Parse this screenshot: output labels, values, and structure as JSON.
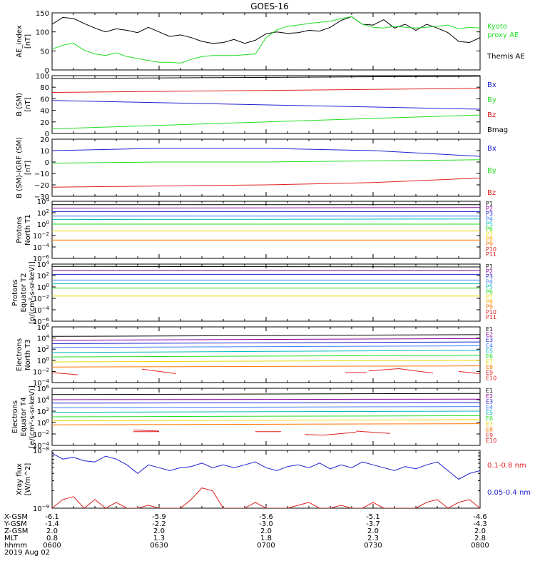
{
  "title": "GOES-16",
  "colors": {
    "black": "#000000",
    "green": "#22dd22",
    "red": "#e02020",
    "blue": "#2020d0",
    "yellow": "#e8d800",
    "orange": "#ff9900",
    "cyan": "#00bbbb"
  },
  "chart_data": [
    {
      "type": "line",
      "id": "ae",
      "ylabel": [
        "AE_index",
        "[nT]"
      ],
      "ylim": [
        0,
        150
      ],
      "yticks": [
        "0",
        "50",
        "100",
        "150"
      ],
      "legend": [
        {
          "text": "Kyoto",
          "color": "#22dd22"
        },
        {
          "text": "proxy AE",
          "color": "#22dd22"
        },
        {
          "text": "Themis AE",
          "color": "#000000"
        }
      ],
      "x": [
        6.0,
        6.05,
        6.1,
        6.15,
        6.2,
        6.25,
        6.3,
        6.35,
        6.4,
        6.45,
        6.5,
        6.55,
        6.6,
        6.65,
        6.7,
        6.75,
        6.8,
        6.85,
        6.9,
        6.95,
        7.0,
        7.05,
        7.1,
        7.15,
        7.2,
        7.25,
        7.3,
        7.35,
        7.4,
        7.45,
        7.5,
        7.55,
        7.6,
        7.65,
        7.7,
        7.75,
        7.8,
        7.85,
        7.9,
        7.95,
        8.0
      ],
      "series": [
        {
          "name": "Themis AE",
          "color": "#000000",
          "values": [
            120,
            138,
            135,
            122,
            110,
            100,
            108,
            104,
            98,
            112,
            100,
            88,
            92,
            85,
            75,
            70,
            72,
            80,
            70,
            78,
            95,
            100,
            96,
            98,
            104,
            102,
            112,
            130,
            140,
            120,
            118,
            132,
            110,
            120,
            104,
            120,
            110,
            98,
            75,
            72,
            85
          ]
        },
        {
          "name": "Kyoto proxy AE",
          "color": "#22dd22",
          "values": [
            55,
            65,
            70,
            52,
            42,
            38,
            45,
            35,
            30,
            25,
            20,
            20,
            18,
            28,
            35,
            38,
            38,
            38,
            40,
            42,
            85,
            105,
            115,
            118,
            122,
            125,
            128,
            135,
            140,
            120,
            112,
            110,
            115,
            112,
            110,
            112,
            115,
            118,
            108,
            112,
            110
          ]
        }
      ]
    },
    {
      "type": "line",
      "id": "bsm",
      "ylabel": [
        "B (SM)",
        "[nT]"
      ],
      "ylim": [
        0,
        100
      ],
      "yticks": [
        "0",
        "20",
        "40",
        "60",
        "80",
        "100"
      ],
      "legend": [
        {
          "text": "Bx",
          "color": "#2020d0"
        },
        {
          "text": "By",
          "color": "#22dd22"
        },
        {
          "text": "Bz",
          "color": "#e02020"
        },
        {
          "text": "Bmag",
          "color": "#000000"
        }
      ],
      "x": [
        6.0,
        8.0
      ],
      "series": [
        {
          "name": "Bmag",
          "color": "#000000",
          "values": [
            95,
            99
          ]
        },
        {
          "name": "Bz",
          "color": "#e02020",
          "values": [
            71,
            78
          ]
        },
        {
          "name": "Bx",
          "color": "#2020d0",
          "values": [
            57,
            42
          ]
        },
        {
          "name": "By",
          "color": "#22dd22",
          "values": [
            8,
            32
          ]
        }
      ]
    },
    {
      "type": "line",
      "id": "bdiff",
      "ylabel": [
        "B (SM)-IGRF (SM)",
        "[nT]"
      ],
      "ylim": [
        -30,
        20
      ],
      "yticks": [
        "−30",
        "−20",
        "−10",
        "0",
        "10",
        "20"
      ],
      "legend": [
        {
          "text": "Bx",
          "color": "#2020d0"
        },
        {
          "text": "By",
          "color": "#22dd22"
        },
        {
          "text": "Bz",
          "color": "#e02020"
        }
      ],
      "x": [
        6.0,
        6.5,
        7.0,
        7.5,
        8.0
      ],
      "series": [
        {
          "name": "Bx",
          "color": "#2020d0",
          "values": [
            10,
            12,
            12,
            10,
            5
          ]
        },
        {
          "name": "By",
          "color": "#22dd22",
          "values": [
            -1,
            0,
            0,
            1,
            2
          ]
        },
        {
          "name": "Bz",
          "color": "#e02020",
          "values": [
            -22,
            -21,
            -20,
            -18,
            -14
          ]
        }
      ]
    },
    {
      "type": "line",
      "id": "protons-north",
      "log": true,
      "ylabel": [
        "Protons",
        "North T1"
      ],
      "ylim": [
        -6,
        4
      ],
      "yticks": [
        "10^-6",
        "10^-4",
        "10^-2",
        "10^0",
        "10^2",
        "10^4"
      ],
      "x": [
        6.0,
        8.0
      ],
      "series": [
        {
          "name": "P1",
          "color": "#000000",
          "values": [
            3.4,
            3.4
          ]
        },
        {
          "name": "P2",
          "color": "#8a00a0",
          "values": [
            2.8,
            2.9
          ]
        },
        {
          "name": "P3",
          "color": "#2020d0",
          "values": [
            2.2,
            2.2
          ]
        },
        {
          "name": "P4",
          "color": "#3a7fff",
          "values": [
            1.4,
            1.4
          ]
        },
        {
          "name": "P5",
          "color": "#00bbbb",
          "values": [
            0.8,
            0.9
          ]
        },
        {
          "name": "P6",
          "color": "#22dd22",
          "values": [
            0.0,
            0.0
          ]
        },
        {
          "name": "P7",
          "color": "#e8d800",
          "values": [
            -1.2,
            -1.2
          ]
        },
        {
          "name": "P8",
          "color": "#ffaa00",
          "values": [
            -2.8,
            -2.8
          ]
        },
        {
          "name": "P9",
          "color": "#ff7700",
          "values": [
            -2.8,
            -2.8
          ]
        },
        {
          "name": "P10",
          "color": "#e02020",
          "values": [
            -7,
            -7
          ]
        },
        {
          "name": "P11",
          "color": "#e02020",
          "values": [
            -7,
            -7
          ]
        }
      ]
    },
    {
      "type": "line",
      "id": "protons-equator",
      "log": true,
      "ylabel": [
        "Protons",
        "Equator T2",
        "[p/(cm²-s-sr-keV)]"
      ],
      "ylim": [
        -6,
        4
      ],
      "yticks": [
        "10^-6",
        "10^-4",
        "10^-2",
        "10^0",
        "10^2",
        "10^4"
      ],
      "x": [
        6.0,
        8.0
      ],
      "series": [
        {
          "name": "P1",
          "color": "#000000",
          "values": [
            3.6,
            3.5
          ]
        },
        {
          "name": "P2",
          "color": "#8a00a0",
          "values": [
            2.9,
            2.9
          ]
        },
        {
          "name": "P3",
          "color": "#2020d0",
          "values": [
            2.2,
            2.2
          ]
        },
        {
          "name": "P4",
          "color": "#3a7fff",
          "values": [
            1.2,
            1.2
          ]
        },
        {
          "name": "P5",
          "color": "#00bbbb",
          "values": [
            0.6,
            0.6
          ]
        },
        {
          "name": "P6",
          "color": "#22dd22",
          "values": [
            -0.2,
            -0.2
          ]
        },
        {
          "name": "P7",
          "color": "#e8d800",
          "values": [
            -1.6,
            -1.6
          ]
        },
        {
          "name": "P8",
          "color": "#ffaa00",
          "values": [
            -7,
            -7
          ]
        },
        {
          "name": "P9",
          "color": "#ff7700",
          "values": [
            -7,
            -7
          ]
        },
        {
          "name": "P10",
          "color": "#e02020",
          "values": [
            -7,
            -7
          ]
        },
        {
          "name": "P11",
          "color": "#e02020",
          "values": [
            -7,
            -7
          ]
        }
      ]
    },
    {
      "type": "line",
      "id": "electrons-north",
      "log": true,
      "ylabel": [
        "Electrons",
        "North T3"
      ],
      "ylim": [
        -4,
        6
      ],
      "yticks": [
        "10^-4",
        "10^-2",
        "10^0",
        "10^2",
        "10^4",
        "10^6"
      ],
      "x": [
        6.0,
        8.0
      ],
      "series": [
        {
          "name": "E1",
          "color": "#000000",
          "values": [
            4.3,
            4.6
          ]
        },
        {
          "name": "E2",
          "color": "#8a00a0",
          "values": [
            3.6,
            3.9
          ]
        },
        {
          "name": "E3",
          "color": "#2020d0",
          "values": [
            3.0,
            3.3
          ]
        },
        {
          "name": "E4",
          "color": "#3a7fff",
          "values": [
            2.3,
            2.6
          ]
        },
        {
          "name": "E5",
          "color": "#00bbbb",
          "values": [
            1.4,
            1.8
          ]
        },
        {
          "name": "E6",
          "color": "#22dd22",
          "values": [
            0.6,
            0.9
          ]
        },
        {
          "name": "E7",
          "color": "#e8d800",
          "values": [
            -0.3,
            0.0
          ]
        },
        {
          "name": "E8",
          "color": "#ff7700",
          "values": [
            -1.2,
            -1.0
          ]
        },
        {
          "name": "E9",
          "color": "#e02020",
          "values": [
            -6,
            -6
          ]
        },
        {
          "name": "E10",
          "color": "#e02020",
          "values": [
            -6,
            -6
          ]
        }
      ],
      "segments": [
        {
          "x": [
            6.0,
            6.12
          ],
          "y": [
            -2.2,
            -2.6
          ]
        },
        {
          "x": [
            6.42,
            6.58
          ],
          "y": [
            -1.6,
            -2.4
          ]
        },
        {
          "x": [
            7.37,
            7.47
          ],
          "y": [
            -2.2,
            -2.2
          ]
        },
        {
          "x": [
            7.48,
            7.62
          ],
          "y": [
            -1.9,
            -1.5
          ]
        },
        {
          "x": [
            7.62,
            7.78
          ],
          "y": [
            -1.5,
            -2.3
          ]
        },
        {
          "x": [
            7.9,
            8.0
          ],
          "y": [
            -2.0,
            -2.4
          ]
        }
      ]
    },
    {
      "type": "line",
      "id": "electrons-equator",
      "log": true,
      "ylabel": [
        "Electrons",
        "Equator T4",
        "[e/(cm²-s-sr-keV)]"
      ],
      "ylim": [
        -4,
        6
      ],
      "yticks": [
        "10^-4",
        "10^-2",
        "10^0",
        "10^2",
        "10^4",
        "10^6"
      ],
      "x": [
        6.0,
        8.0
      ],
      "series": [
        {
          "name": "E1",
          "color": "#000000",
          "values": [
            4.9,
            5.1
          ]
        },
        {
          "name": "E2",
          "color": "#8a00a0",
          "values": [
            4.0,
            4.1
          ]
        },
        {
          "name": "E3",
          "color": "#2020d0",
          "values": [
            3.4,
            3.5
          ]
        },
        {
          "name": "E4",
          "color": "#3a7fff",
          "values": [
            2.6,
            2.8
          ]
        },
        {
          "name": "E5",
          "color": "#00bbbb",
          "values": [
            1.8,
            2.0
          ]
        },
        {
          "name": "E6",
          "color": "#22dd22",
          "values": [
            1.0,
            1.2
          ]
        },
        {
          "name": "E7",
          "color": "#e8d800",
          "values": [
            0.3,
            0.5
          ]
        },
        {
          "name": "E8",
          "color": "#ff7700",
          "values": [
            -0.4,
            -0.2
          ]
        },
        {
          "name": "E9",
          "color": "#e02020",
          "values": [
            -6,
            -6
          ]
        },
        {
          "name": "E10",
          "color": "#e02020",
          "values": [
            -6,
            -6
          ]
        }
      ],
      "segments": [
        {
          "x": [
            6.38,
            6.5
          ],
          "y": [
            -1.3,
            -1.5
          ]
        },
        {
          "x": [
            6.38,
            6.5
          ],
          "y": [
            -1.6,
            -1.6
          ]
        },
        {
          "x": [
            6.95,
            7.07
          ],
          "y": [
            -1.6,
            -1.6
          ]
        },
        {
          "x": [
            7.18,
            7.27
          ],
          "y": [
            -2.1,
            -2.2
          ]
        },
        {
          "x": [
            7.27,
            7.42
          ],
          "y": [
            -2.2,
            -1.7
          ]
        },
        {
          "x": [
            7.42,
            7.58
          ],
          "y": [
            -1.5,
            -1.9
          ]
        }
      ]
    },
    {
      "type": "line",
      "id": "xray",
      "log": true,
      "ylabel": [
        "Xray flux",
        "[W/m^2]"
      ],
      "ylim": [
        -9,
        -8
      ],
      "yticks": [
        "10^-9",
        "10^-8"
      ],
      "legend": [
        {
          "text": "0.1-0.8 nm",
          "color": "#e02020"
        },
        {
          "text": "0.05-0.4 nm",
          "color": "#2020d0"
        }
      ],
      "x": [
        6.0,
        6.05,
        6.1,
        6.15,
        6.2,
        6.25,
        6.3,
        6.35,
        6.4,
        6.45,
        6.5,
        6.55,
        6.6,
        6.65,
        6.7,
        6.75,
        6.8,
        6.85,
        6.9,
        6.95,
        7.0,
        7.05,
        7.1,
        7.15,
        7.2,
        7.25,
        7.3,
        7.35,
        7.4,
        7.45,
        7.5,
        7.55,
        7.6,
        7.65,
        7.7,
        7.75,
        7.8,
        7.85,
        7.9,
        7.95,
        8.0
      ],
      "series": [
        {
          "name": "0.05-0.4 nm",
          "color": "#2020d0",
          "values": [
            -8.05,
            -8.15,
            -8.12,
            -8.18,
            -8.2,
            -8.1,
            -8.15,
            -8.25,
            -8.4,
            -8.25,
            -8.3,
            -8.35,
            -8.3,
            -8.28,
            -8.22,
            -8.3,
            -8.25,
            -8.3,
            -8.25,
            -8.2,
            -8.3,
            -8.35,
            -8.28,
            -8.25,
            -8.3,
            -8.22,
            -8.32,
            -8.25,
            -8.3,
            -8.2,
            -8.25,
            -8.3,
            -8.35,
            -8.28,
            -8.32,
            -8.25,
            -8.2,
            -8.35,
            -8.5,
            -8.4,
            -8.35
          ]
        },
        {
          "name": "0.1-0.8 nm",
          "color": "#e02020",
          "values": [
            -9.0,
            -8.85,
            -8.8,
            -9.0,
            -8.85,
            -9.0,
            -8.9,
            -9.0,
            -9.0,
            -8.95,
            -9.0,
            -9.0,
            -9.0,
            -8.85,
            -8.65,
            -8.7,
            -9.0,
            -9.0,
            -9.0,
            -8.9,
            -9.0,
            -9.0,
            -9.0,
            -8.95,
            -8.9,
            -9.0,
            -9.0,
            -8.95,
            -9.0,
            -9.0,
            -8.9,
            -9.0,
            -9.0,
            -9.0,
            -9.0,
            -8.9,
            -8.85,
            -9.0,
            -8.9,
            -8.85,
            -9.0
          ]
        }
      ]
    }
  ],
  "xaxis": {
    "x": [
      6.0,
      6.5,
      7.0,
      7.5,
      8.0
    ],
    "rows": [
      {
        "label": "X-GSM",
        "values": [
          "-6.1",
          "-5.9",
          "-5.6",
          "-5.1",
          "-4.6"
        ]
      },
      {
        "label": "Y-GSM",
        "values": [
          "-1.4",
          "-2.2",
          "-3.0",
          "-3.7",
          "-4.3"
        ]
      },
      {
        "label": "Z-GSM",
        "values": [
          "2.0",
          "2.0",
          "2.0",
          "2.0",
          "2.0"
        ]
      },
      {
        "label": "MLT",
        "values": [
          "0.8",
          "1.3",
          "1.8",
          "2.3",
          "2.8"
        ]
      },
      {
        "label": "hhmm",
        "values": [
          "0600",
          "0630",
          "0700",
          "0730",
          "0800"
        ]
      }
    ],
    "date": "2019 Aug 02"
  }
}
